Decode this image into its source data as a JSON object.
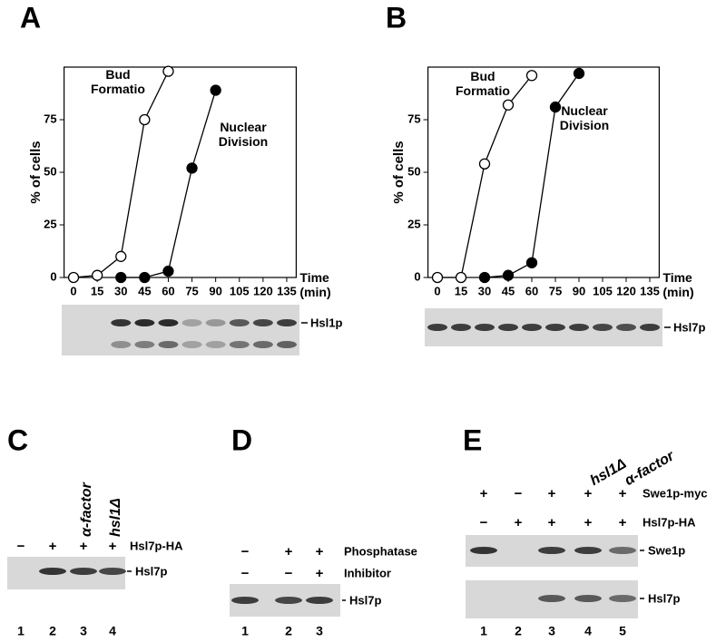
{
  "panel_letters": [
    "A",
    "B",
    "C",
    "D",
    "E"
  ],
  "chart_data": [
    {
      "type": "line",
      "ylabel": "% of cells",
      "xlabel": "Time (min)",
      "x": [
        0,
        15,
        30,
        45,
        60,
        75,
        90,
        105,
        120,
        135
      ],
      "xlim": [
        -6,
        141
      ],
      "ylim": [
        0,
        100
      ],
      "xticks": [
        0,
        15,
        30,
        45,
        60,
        75,
        90,
        105,
        120,
        135
      ],
      "yticks": [
        0,
        25,
        50,
        75
      ],
      "series": [
        {
          "name": "Bud Formation",
          "color": "#000000",
          "marker": "open",
          "values": [
            0,
            1,
            10,
            75,
            98,
            null,
            null,
            null,
            null,
            null
          ]
        },
        {
          "name": "Nuclear Division",
          "color": "#000000",
          "marker": "filled",
          "values": [
            null,
            null,
            0,
            0,
            3,
            52,
            89,
            null,
            null,
            null
          ]
        }
      ],
      "blot_label": "Hsl1p"
    },
    {
      "type": "line",
      "ylabel": "% of cells",
      "xlabel": "Time (min)",
      "x": [
        0,
        15,
        30,
        45,
        60,
        75,
        90,
        105,
        120,
        135
      ],
      "xlim": [
        -6,
        141
      ],
      "ylim": [
        0,
        100
      ],
      "xticks": [
        0,
        15,
        30,
        45,
        60,
        75,
        90,
        105,
        120,
        135
      ],
      "yticks": [
        0,
        25,
        50,
        75
      ],
      "series": [
        {
          "name": "Bud Formation",
          "color": "#000000",
          "marker": "open",
          "values": [
            0,
            0,
            54,
            82,
            96,
            null,
            null,
            null,
            null,
            null
          ]
        },
        {
          "name": "Nuclear Division",
          "color": "#000000",
          "marker": "filled",
          "values": [
            null,
            null,
            0,
            1,
            7,
            81,
            97,
            null,
            null,
            null
          ]
        }
      ],
      "blot_label": "Hsl7p"
    }
  ],
  "gels": [
    {
      "treatments": [
        {
          "signs": [
            "−",
            "+",
            "+",
            "+"
          ],
          "label": "Hsl7p-HA"
        }
      ],
      "lane_notes": [
        null,
        null,
        "α-factor",
        "hsl1Δ"
      ],
      "bands": [
        "Hsl7p"
      ],
      "lanes": [
        1,
        2,
        3,
        4
      ]
    },
    {
      "treatments": [
        {
          "signs": [
            "−",
            "+",
            "+"
          ],
          "label": "Phosphatase"
        },
        {
          "signs": [
            "−",
            "−",
            "+"
          ],
          "label": "Inhibitor"
        }
      ],
      "bands": [
        "Hsl7p"
      ],
      "lanes": [
        1,
        2,
        3
      ]
    },
    {
      "treatments": [
        {
          "signs": [
            "+",
            "−",
            "+",
            "+",
            "+"
          ],
          "label": "Swe1p-myc"
        },
        {
          "signs": [
            "−",
            "+",
            "+",
            "+",
            "+"
          ],
          "label": "Hsl7p-HA"
        }
      ],
      "lane_notes": [
        null,
        null,
        null,
        "hsl1Δ",
        "α-factor"
      ],
      "bands": [
        "Swe1p",
        "Hsl7p"
      ],
      "lanes": [
        1,
        2,
        3,
        4,
        5
      ]
    }
  ]
}
